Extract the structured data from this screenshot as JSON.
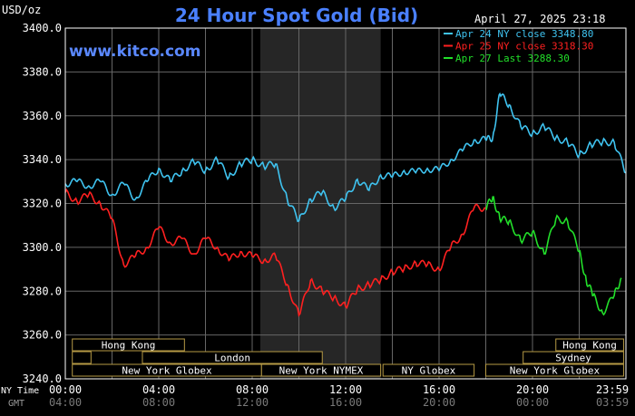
{
  "header": {
    "unit": "USD/oz",
    "title": "24 Hour Spot Gold (Bid)",
    "datetime": "April 27, 2025 23:18",
    "watermark": "www.kitco.com"
  },
  "legend": [
    {
      "text": "Apr 24 NY close 3348.80",
      "color": "#3fc3f0"
    },
    {
      "text": "Apr 25 NY close 3318.30",
      "color": "#ff2020"
    },
    {
      "text": "Apr 27 Last 3288.30",
      "color": "#22e02a"
    }
  ],
  "sessions": {
    "hong_kong_left": "Hong Kong",
    "london": "London",
    "ny_globex_1": "New York Globex",
    "ny_nymex": "New York NYMEX",
    "ny_globex_2": "NY Globex",
    "hong_kong_right": "Hong Kong",
    "sydney": "Sydney",
    "ny_globex_3": "New York Globex"
  },
  "time_axis": {
    "ny_label": "NY Time",
    "gmt_label": "GMT",
    "ny_ticks": [
      "00:00",
      "04:00",
      "08:00",
      "12:00",
      "16:00",
      "20:00",
      "23:59"
    ],
    "gmt_ticks": [
      "04:00",
      "08:00",
      "12:00",
      "16:00",
      "20:00",
      "00:00",
      "03:59"
    ]
  },
  "chart_data": {
    "type": "line",
    "title": "24 Hour Spot Gold (Bid)",
    "ylabel": "USD/oz",
    "ylim": [
      3240,
      3400
    ],
    "yticks": [
      "3400.0",
      "3380.0",
      "3360.0",
      "3340.0",
      "3320.0",
      "3300.0",
      "3280.0",
      "3260.0",
      "3240.0"
    ],
    "xlim": [
      0,
      24
    ],
    "x_unit": "hours (NY time)",
    "grid": true,
    "legend_position": "top-right",
    "series": [
      {
        "name": "Apr 24 NY close 3348.80",
        "color": "#3fc3f0",
        "x": [
          0,
          0.5,
          1.0,
          1.5,
          2.0,
          2.5,
          3.0,
          3.5,
          4.0,
          4.5,
          5.0,
          5.5,
          6.0,
          6.5,
          7.0,
          7.5,
          8.0,
          8.5,
          9.0,
          9.5,
          10.0,
          10.5,
          11.0,
          11.5,
          12.0,
          12.5,
          13.0,
          13.5,
          14.0,
          14.5,
          15.0,
          15.5,
          16.0,
          16.5,
          17.0,
          17.5,
          18.0,
          18.3,
          18.6,
          19.0,
          19.5,
          20.0,
          20.5,
          21.0,
          21.5,
          22.0,
          22.5,
          23.0,
          23.5,
          23.99
        ],
        "values": [
          3329,
          3330,
          3328,
          3330,
          3324,
          3329,
          3322,
          3330,
          3336,
          3330,
          3335,
          3339,
          3335,
          3340,
          3332,
          3338,
          3340,
          3337,
          3338,
          3322,
          3312,
          3322,
          3325,
          3318,
          3322,
          3331,
          3326,
          3333,
          3332,
          3335,
          3334,
          3336,
          3335,
          3340,
          3344,
          3349,
          3349,
          3350,
          3370,
          3365,
          3355,
          3352,
          3355,
          3350,
          3348,
          3342,
          3347,
          3348,
          3348,
          3334
        ]
      },
      {
        "name": "Apr 25 NY close 3318.30",
        "color": "#ff2020",
        "x": [
          0,
          0.5,
          1.0,
          1.5,
          2.0,
          2.5,
          3.0,
          3.5,
          4.0,
          4.5,
          5.0,
          5.5,
          6.0,
          6.5,
          7.0,
          7.5,
          8.0,
          8.5,
          9.0,
          9.5,
          10.0,
          10.5,
          11.0,
          11.5,
          12.0,
          12.5,
          13.0,
          13.5,
          14.0,
          14.5,
          15.0,
          15.5,
          16.0,
          16.5,
          17.0,
          17.5,
          18.0
        ],
        "values": [
          3325,
          3321,
          3324,
          3320,
          3313,
          3292,
          3296,
          3300,
          3309,
          3302,
          3304,
          3297,
          3304,
          3300,
          3294,
          3298,
          3296,
          3294,
          3296,
          3283,
          3269,
          3285,
          3280,
          3277,
          3273,
          3281,
          3283,
          3285,
          3289,
          3290,
          3293,
          3292,
          3290,
          3300,
          3306,
          3318,
          3318
        ]
      },
      {
        "name": "Apr 27 Last 3288.30",
        "color": "#22e02a",
        "x": [
          18.0,
          18.3,
          18.6,
          19.0,
          19.5,
          20.0,
          20.5,
          21.0,
          21.5,
          22.0,
          22.3,
          22.6,
          23.0,
          23.5,
          23.8
        ],
        "values": [
          3318,
          3323,
          3313,
          3312,
          3303,
          3307,
          3297,
          3313,
          3312,
          3298,
          3285,
          3278,
          3270,
          3278,
          3286
        ]
      }
    ]
  },
  "style": {
    "background": "#000000",
    "grid_color": "#666666",
    "axis_color": "#ffffff",
    "title_color": "#4a80ff",
    "watermark_color": "#5a88ff",
    "nymex_shade": "#262626",
    "session_box_fill": "#000000",
    "session_box_stroke": "#b69a45",
    "session_text_color": "#ffffff",
    "gmt_color": "#7a7a7a"
  }
}
